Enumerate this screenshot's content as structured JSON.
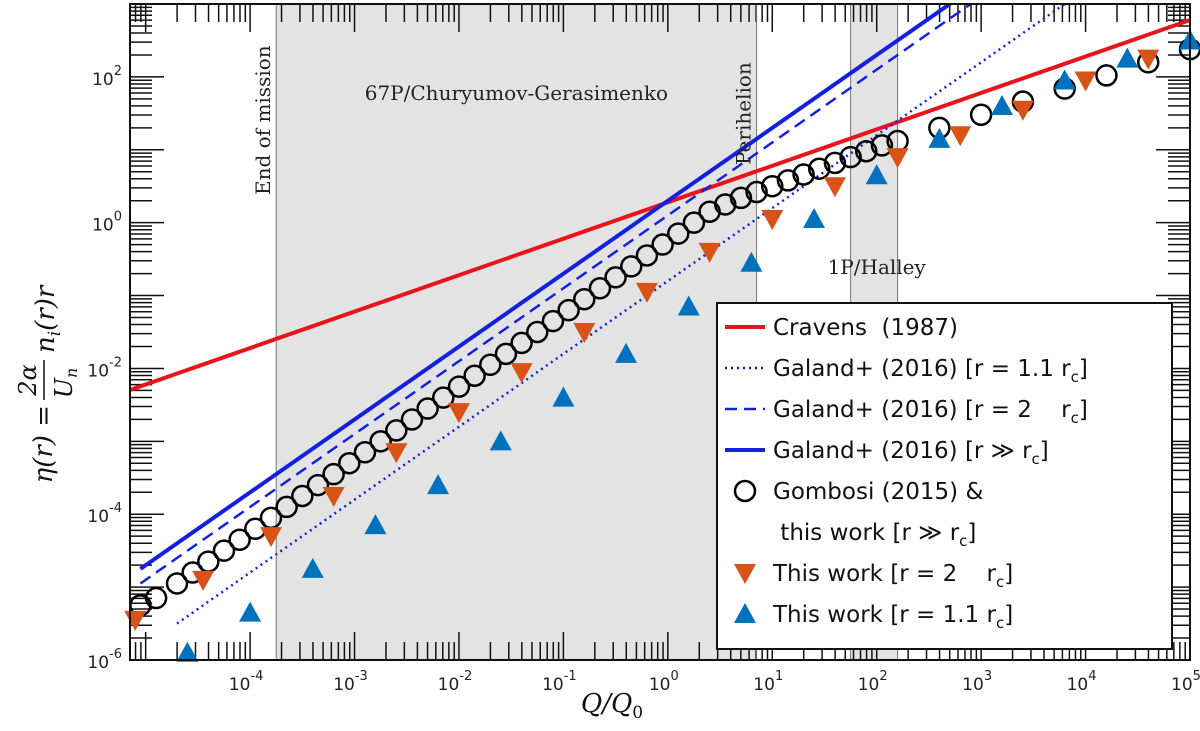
{
  "chart_data": {
    "type": "line",
    "xscale": "log",
    "yscale": "log",
    "xlim_log10": [
      -5.15,
      5
    ],
    "ylim_log10": [
      -6,
      3
    ],
    "x_tick_exponents": [
      -4,
      -3,
      -2,
      -1,
      0,
      1,
      2,
      3,
      4,
      5
    ],
    "y_tick_exponents": [
      -6,
      -4,
      -2,
      0,
      2
    ],
    "tick_base": "10",
    "xlabel": "Q/Q",
    "xlabel_sub": "0",
    "ylabel_lhs": "η(r) =",
    "ylabel_num": "2α",
    "ylabel_den": "U",
    "ylabel_den_sub": "n",
    "ylabel_rhs": "n",
    "ylabel_rhs_sub": "i",
    "ylabel_rhs_tail": "(r)r",
    "annotations": {
      "end_of_mission": "End of mission",
      "perihelion": "Perihelion",
      "comet_67p": "67P/Churyumov-Gerasimenko",
      "halley": "1P/Halley"
    },
    "regions": [
      {
        "name": "67P/Churyumov-Gerasimenko",
        "x_log10": [
          -3.75,
          0.85
        ]
      },
      {
        "name": "1P/Halley",
        "x_log10": [
          1.75,
          2.2
        ]
      }
    ],
    "series": [
      {
        "name": "Cravens (1987)",
        "color": "#e8141a",
        "style": "solid",
        "slope": 0.5,
        "intercept": 0.28,
        "x_range": [
          -5.15,
          5
        ]
      },
      {
        "name": "Galand+ (2016) [r = 1.1 rc]",
        "color": "#1220e0",
        "style": "dotted",
        "slope": 1,
        "intercept": -0.8,
        "x_range": [
          -4.7,
          5
        ]
      },
      {
        "name": "Galand+ (2016) [r = 2 rc]",
        "color": "#1220e0",
        "style": "dashed",
        "slope": 1,
        "intercept": 0.1,
        "x_range": [
          -5.05,
          5
        ]
      },
      {
        "name": "Galand+ (2016) [r >> rc]",
        "color": "#1220e0",
        "style": "solid",
        "slope": 1,
        "intercept": 0.3,
        "x_range": [
          -5.05,
          3.6
        ]
      },
      {
        "name": "Gombosi (2015) & this work [r >> rc]",
        "marker": "circle",
        "color": "#000000",
        "x": [
          -5.05,
          -4.9,
          -4.7,
          -4.55,
          -4.4,
          -4.25,
          -4.1,
          -3.95,
          -3.8,
          -3.65,
          -3.5,
          -3.35,
          -3.2,
          -3.05,
          -2.9,
          -2.75,
          -2.6,
          -2.45,
          -2.3,
          -2.15,
          -2.0,
          -1.85,
          -1.7,
          -1.55,
          -1.4,
          -1.25,
          -1.1,
          -0.95,
          -0.8,
          -0.65,
          -0.5,
          -0.35,
          -0.2,
          -0.05,
          0.1,
          0.25,
          0.4,
          0.55,
          0.7,
          0.85,
          1.0,
          1.15,
          1.3,
          1.45,
          1.6,
          1.75,
          1.9,
          2.05,
          2.2,
          2.6,
          3.0,
          3.4,
          3.8,
          4.2,
          4.6,
          5.0
        ],
        "y": [
          -5.25,
          -5.15,
          -4.95,
          -4.8,
          -4.65,
          -4.5,
          -4.35,
          -4.2,
          -4.05,
          -3.9,
          -3.75,
          -3.6,
          -3.45,
          -3.3,
          -3.15,
          -3.0,
          -2.85,
          -2.7,
          -2.55,
          -2.4,
          -2.25,
          -2.1,
          -1.95,
          -1.8,
          -1.65,
          -1.5,
          -1.35,
          -1.2,
          -1.05,
          -0.9,
          -0.75,
          -0.6,
          -0.45,
          -0.3,
          -0.15,
          0.0,
          0.15,
          0.25,
          0.34,
          0.42,
          0.5,
          0.58,
          0.66,
          0.74,
          0.82,
          0.9,
          0.98,
          1.06,
          1.12,
          1.3,
          1.48,
          1.66,
          1.84,
          2.02,
          2.2,
          2.38
        ]
      },
      {
        "name": "This work [r = 2 rc]",
        "marker": "triangle-down",
        "color": "#d95319",
        "x": [
          -5.1,
          -4.45,
          -3.8,
          -3.2,
          -2.6,
          -2.0,
          -1.4,
          -0.8,
          -0.2,
          0.4,
          1.0,
          1.6,
          2.2,
          2.8,
          3.4,
          4.0,
          4.6
        ],
        "y": [
          -5.45,
          -4.9,
          -4.3,
          -3.75,
          -3.15,
          -2.6,
          -2.05,
          -1.5,
          -0.95,
          -0.4,
          0.05,
          0.5,
          0.9,
          1.2,
          1.55,
          1.95,
          2.25
        ]
      },
      {
        "name": "This work [r = 1.1 rc]",
        "marker": "triangle-up",
        "color": "#0072bd",
        "x": [
          -4.6,
          -4.0,
          -3.4,
          -2.8,
          -2.2,
          -1.6,
          -1.0,
          -0.4,
          0.2,
          0.8,
          1.4,
          2.0,
          2.6,
          3.2,
          3.8,
          4.4,
          5.0
        ],
        "y": [
          -5.9,
          -5.35,
          -4.75,
          -4.15,
          -3.6,
          -3.0,
          -2.4,
          -1.8,
          -1.15,
          -0.55,
          0.05,
          0.65,
          1.15,
          1.6,
          1.95,
          2.25,
          2.5
        ]
      }
    ],
    "legend": {
      "position": "lower-right",
      "entries": [
        {
          "label": "Cravens  (1987)",
          "kind": "line-solid-red"
        },
        {
          "label": "Galand+ (2016) [r = 1.1 r",
          "sub": "c",
          "tail": "]",
          "kind": "line-dotted-blue"
        },
        {
          "label": "Galand+ (2016) [r = 2    r",
          "sub": "c",
          "tail": "]",
          "kind": "line-dashed-blue"
        },
        {
          "label": "Galand+ (2016) [r ≫ r",
          "sub": "c",
          "tail": "]",
          "kind": "line-solid-blue"
        },
        {
          "label": "Gombosi (2015) &",
          "kind": "circle"
        },
        {
          "label": " this work [r ≫ r",
          "sub": "c",
          "tail": "]",
          "kind": "none"
        },
        {
          "label": "This work [r = 2    r",
          "sub": "c",
          "tail": "]",
          "kind": "triangle-down"
        },
        {
          "label": "This work [r = 1.1 r",
          "sub": "c",
          "tail": "]",
          "kind": "triangle-up"
        }
      ]
    }
  }
}
